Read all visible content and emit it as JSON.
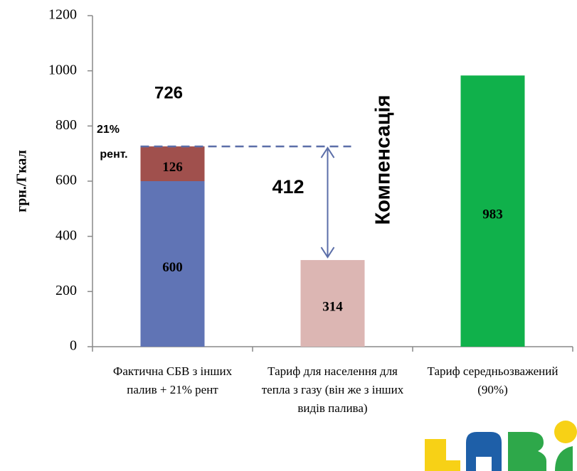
{
  "chart_data": {
    "type": "stacked-bar",
    "y_label": "грн./Гкал",
    "categories": [
      "Фактична СБВ з інших палив + 21% рент",
      "Тариф для населення для тепла з газу (він же з інших видів палива)",
      "Тариф середньозважений (90%)"
    ],
    "series": [
      {
        "colors": [
          "#6074b5",
          "#dcb6b3",
          "#10b14b"
        ],
        "values": [
          600,
          314,
          983
        ]
      },
      {
        "color": "#a0504d",
        "values": [
          126,
          null,
          null
        ]
      }
    ],
    "ylim": [
      0,
      1200
    ],
    "yticks": [
      0,
      200,
      400,
      600,
      800,
      1000,
      1200
    ],
    "total_label": 726,
    "share_label": "21%",
    "share_label_2": "рент.",
    "difference_label": 412,
    "compensation_label": "Компенсація"
  }
}
